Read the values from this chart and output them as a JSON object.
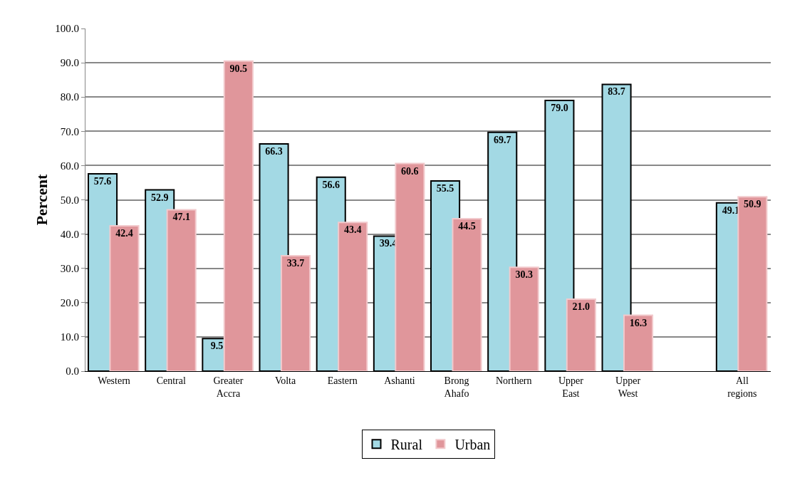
{
  "chart_data": {
    "type": "bar",
    "ylabel": "Percent",
    "categories": [
      "Western",
      "Central",
      "Greater Accra",
      "Volta",
      "Eastern",
      "Ashanti",
      "Brong Ahafo",
      "Northern",
      "Upper East",
      "Upper West",
      null,
      "All regions"
    ],
    "series": [
      {
        "name": "Rural",
        "color": "#a3d9e4",
        "values": [
          57.6,
          52.9,
          9.5,
          66.3,
          56.6,
          39.4,
          55.5,
          69.7,
          79.0,
          83.7,
          null,
          49.1
        ],
        "value_labels": [
          "57.6",
          "52.9",
          "9.5",
          "66.3",
          "56.6",
          "39.4",
          "55.5",
          "69.7",
          "79.0",
          "83.7",
          null,
          "49.1"
        ]
      },
      {
        "name": "Urban",
        "color": "#e0969b",
        "values": [
          42.4,
          47.1,
          90.5,
          33.7,
          43.4,
          60.6,
          44.5,
          30.3,
          21.0,
          16.3,
          null,
          50.9
        ],
        "value_labels": [
          "42.4",
          "47.1",
          "90.5",
          "33.7",
          "43.4",
          "60.6",
          "44.5",
          "30.3",
          "21.0",
          "16.3",
          null,
          "50.9"
        ]
      }
    ],
    "ylim": [
      0,
      100
    ],
    "yticks": [
      {
        "value": 0,
        "label": "0.0"
      },
      {
        "value": 10,
        "label": "10.0"
      },
      {
        "value": 20,
        "label": "20.0"
      },
      {
        "value": 30,
        "label": "30.0"
      },
      {
        "value": 40,
        "label": "40.0"
      },
      {
        "value": 50,
        "label": "50.0"
      },
      {
        "value": 60,
        "label": "60.0"
      },
      {
        "value": 70,
        "label": "70.0"
      },
      {
        "value": 80,
        "label": "80.0"
      },
      {
        "value": 90,
        "label": "90.0"
      },
      {
        "value": 100,
        "label": "100.0"
      }
    ],
    "grid": "y",
    "legend": "bottom"
  }
}
